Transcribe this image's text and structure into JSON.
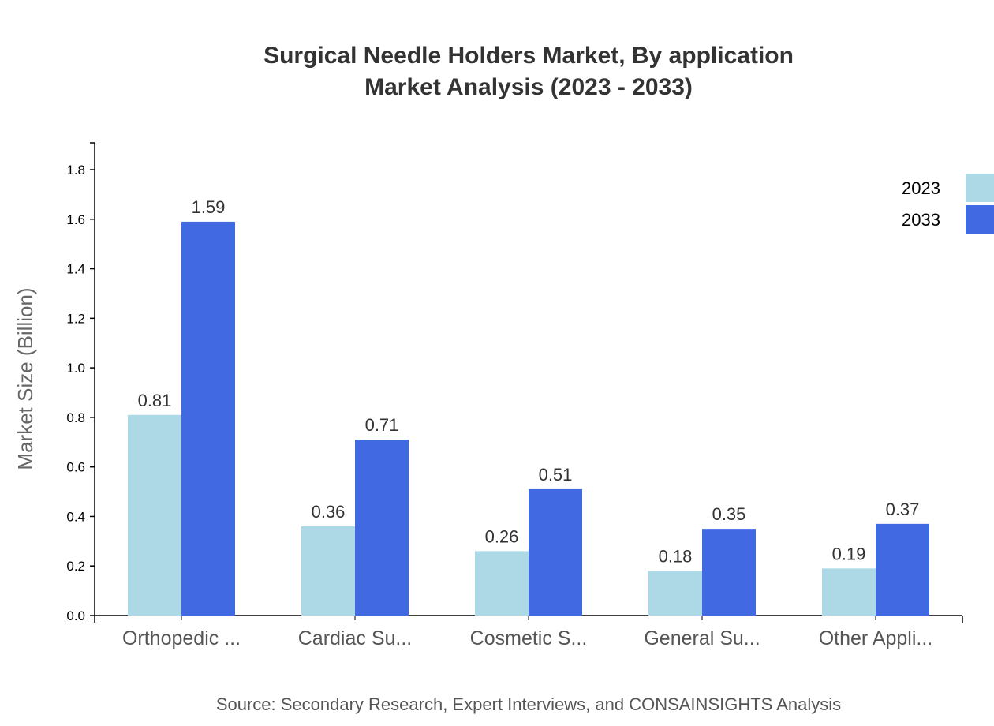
{
  "chart_data": {
    "type": "bar",
    "title": "Surgical Needle Holders Market, By application",
    "subtitle": "Market Analysis (2023 - 2033)",
    "xlabel": "",
    "ylabel": "Market Size (Billion)",
    "ylim": [
      0,
      1.9
    ],
    "yticks": [
      "0.0",
      "0.2",
      "0.4",
      "0.6",
      "0.8",
      "1.0",
      "1.2",
      "1.4",
      "1.6",
      "1.8"
    ],
    "categories": [
      "Orthopedic ...",
      "Cardiac Su...",
      "Cosmetic S...",
      "General Su...",
      "Other Appli..."
    ],
    "series": [
      {
        "name": "2023",
        "color": "#add8e6",
        "values": [
          0.81,
          0.36,
          0.26,
          0.18,
          0.19
        ]
      },
      {
        "name": "2033",
        "color": "#4169e1",
        "values": [
          1.59,
          0.71,
          0.51,
          0.35,
          0.37
        ]
      }
    ],
    "grid": false,
    "legend_position": "top-right",
    "source": "Source: Secondary Research, Expert Interviews, and CONSAINSIGHTS Analysis"
  }
}
